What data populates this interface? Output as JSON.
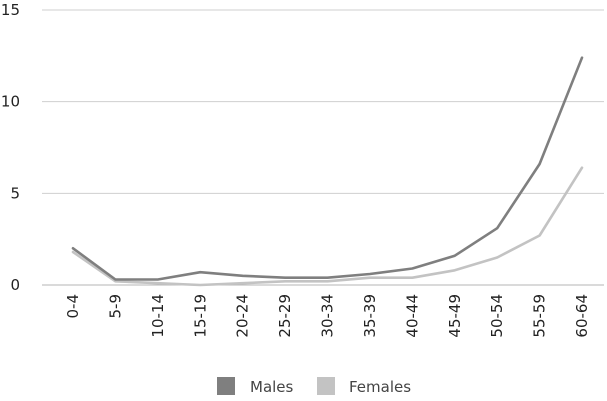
{
  "chart_data": {
    "type": "line",
    "title": "",
    "xlabel": "",
    "ylabel": "",
    "categories": [
      "0-4",
      "5-9",
      "10-14",
      "15-19",
      "20-24",
      "25-29",
      "30-34",
      "35-39",
      "40-44",
      "45-49",
      "50-54",
      "55-59",
      "60-64"
    ],
    "ylim": [
      0,
      15
    ],
    "yticks": [
      0,
      5,
      10,
      15
    ],
    "grid": true,
    "legend_position": "bottom",
    "series": [
      {
        "name": "Males",
        "color": "#7f7f7f",
        "values": [
          2.0,
          0.3,
          0.3,
          0.7,
          0.5,
          0.4,
          0.4,
          0.6,
          0.9,
          1.6,
          3.1,
          6.6,
          12.4
        ]
      },
      {
        "name": "Females",
        "color": "#c3c3c3",
        "values": [
          1.8,
          0.2,
          0.1,
          0.0,
          0.1,
          0.2,
          0.2,
          0.4,
          0.4,
          0.8,
          1.5,
          2.7,
          6.4
        ]
      }
    ]
  }
}
